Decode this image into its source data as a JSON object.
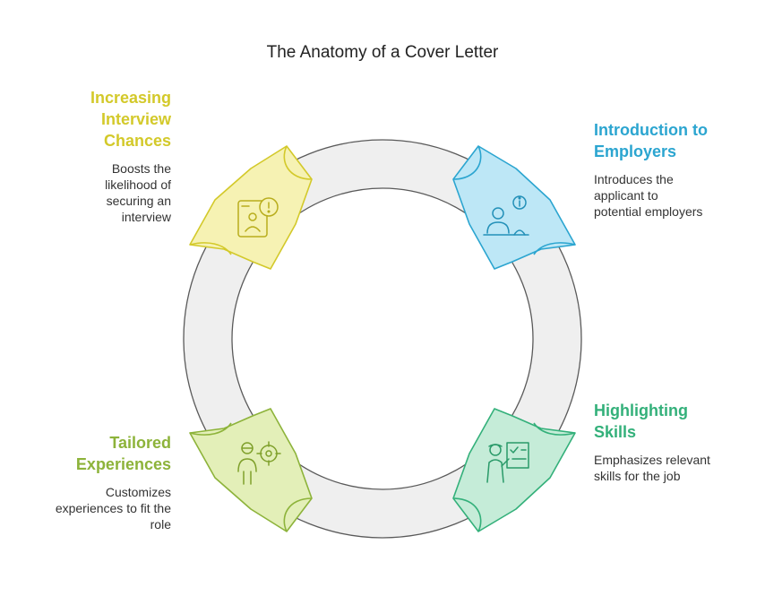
{
  "title": "The Anatomy of a Cover Letter",
  "colors": {
    "ring_fill": "#efefef",
    "ring_stroke": "#5a5a5a",
    "yellow": "#d3c92a",
    "blue": "#2ba5d0",
    "teal": "#33b07a",
    "green": "#8db33a"
  },
  "steps": [
    {
      "id": "tl",
      "heading": "Increasing Interview Chances",
      "heading_lines": [
        "Increasing",
        "Interview",
        "Chances"
      ],
      "description": "Boosts the likelihood of securing an interview",
      "description_lines": [
        "Boosts the",
        "likelihood of",
        "securing an",
        "interview"
      ],
      "icon": "interview-info-icon"
    },
    {
      "id": "tr",
      "heading": "Introduction to Employers",
      "heading_lines": [
        "Introduction to",
        "Employers"
      ],
      "description": "Introduces the applicant to potential employers",
      "description_lines": [
        "Introduces the",
        "applicant to",
        "potential employers"
      ],
      "icon": "applicant-desk-icon"
    },
    {
      "id": "br",
      "heading": "Highlighting Skills",
      "heading_lines": [
        "Highlighting",
        "Skills"
      ],
      "description": "Emphasizes relevant skills for the job",
      "description_lines": [
        "Emphasizes relevant",
        "skills for the job"
      ],
      "icon": "presenter-checklist-icon"
    },
    {
      "id": "bl",
      "heading": "Tailored Experiences",
      "heading_lines": [
        "Tailored",
        "Experiences"
      ],
      "description": "Customizes experiences to fit the role",
      "description_lines": [
        "Customizes",
        "experiences to fit the",
        "role"
      ],
      "icon": "person-target-icon"
    }
  ]
}
